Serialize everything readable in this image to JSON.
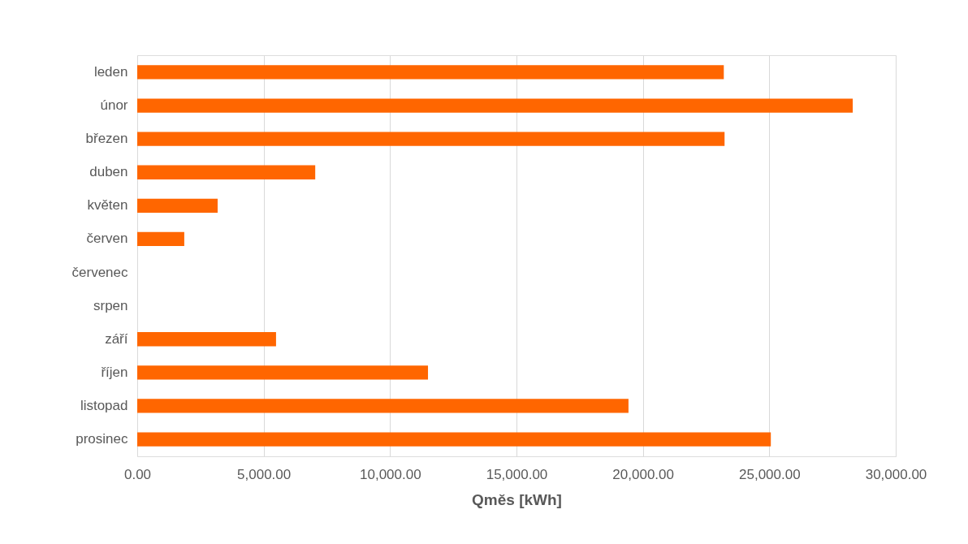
{
  "chart_data": {
    "type": "bar",
    "orientation": "horizontal",
    "xlabel": "Qměs [kWh]",
    "categories": [
      "leden",
      "únor",
      "březen",
      "duben",
      "květen",
      "červen",
      "červenec",
      "srpen",
      "září",
      "říjen",
      "listopad",
      "prosinec"
    ],
    "values": [
      23200,
      28300,
      23230,
      7040,
      3180,
      1860,
      0,
      0,
      5490,
      11500,
      19430,
      25060
    ],
    "color": "#ff6600",
    "xlim": [
      0,
      30000
    ],
    "xticks": [
      {
        "value": 0,
        "label": "0.00"
      },
      {
        "value": 5000,
        "label": "5,000.00"
      },
      {
        "value": 10000,
        "label": "10,000.00"
      },
      {
        "value": 15000,
        "label": "15,000.00"
      },
      {
        "value": 20000,
        "label": "20,000.00"
      },
      {
        "value": 25000,
        "label": "25,000.00"
      },
      {
        "value": 30000,
        "label": "30,000.00"
      }
    ],
    "grid": "x"
  }
}
